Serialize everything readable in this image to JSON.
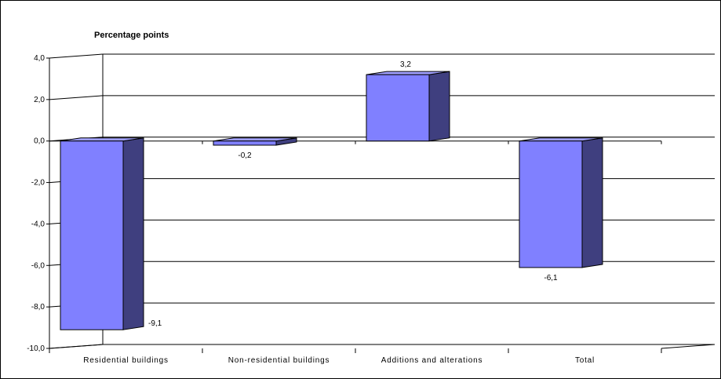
{
  "chart_data": {
    "type": "bar",
    "title": "Percentage points",
    "xlabel": "",
    "ylabel": "",
    "categories": [
      "Residential buildings",
      "Non-residential buildings",
      "Additions and alterations",
      "Total"
    ],
    "values": [
      -9.1,
      -0.2,
      3.2,
      -6.1
    ],
    "data_labels": [
      "-9,1",
      "-0,2",
      "3,2",
      "-6,1"
    ],
    "ylim": [
      -10,
      4
    ],
    "yticks": [
      4,
      2,
      0,
      -2,
      -4,
      -6,
      -8,
      -10
    ],
    "ytick_labels": [
      "4,0",
      "2,0",
      "0,0",
      "-2,0",
      "-4,0",
      "-6,0",
      "-8,0",
      "-10,0"
    ],
    "grid": true,
    "legend": "none",
    "bar_style": "3d"
  },
  "colors": {
    "bar_front": "#8080FF",
    "bar_side": "#3F3F7F",
    "bar_top": "#A0A0FF",
    "gridline": "#000000",
    "background": "#FFFFFF"
  }
}
